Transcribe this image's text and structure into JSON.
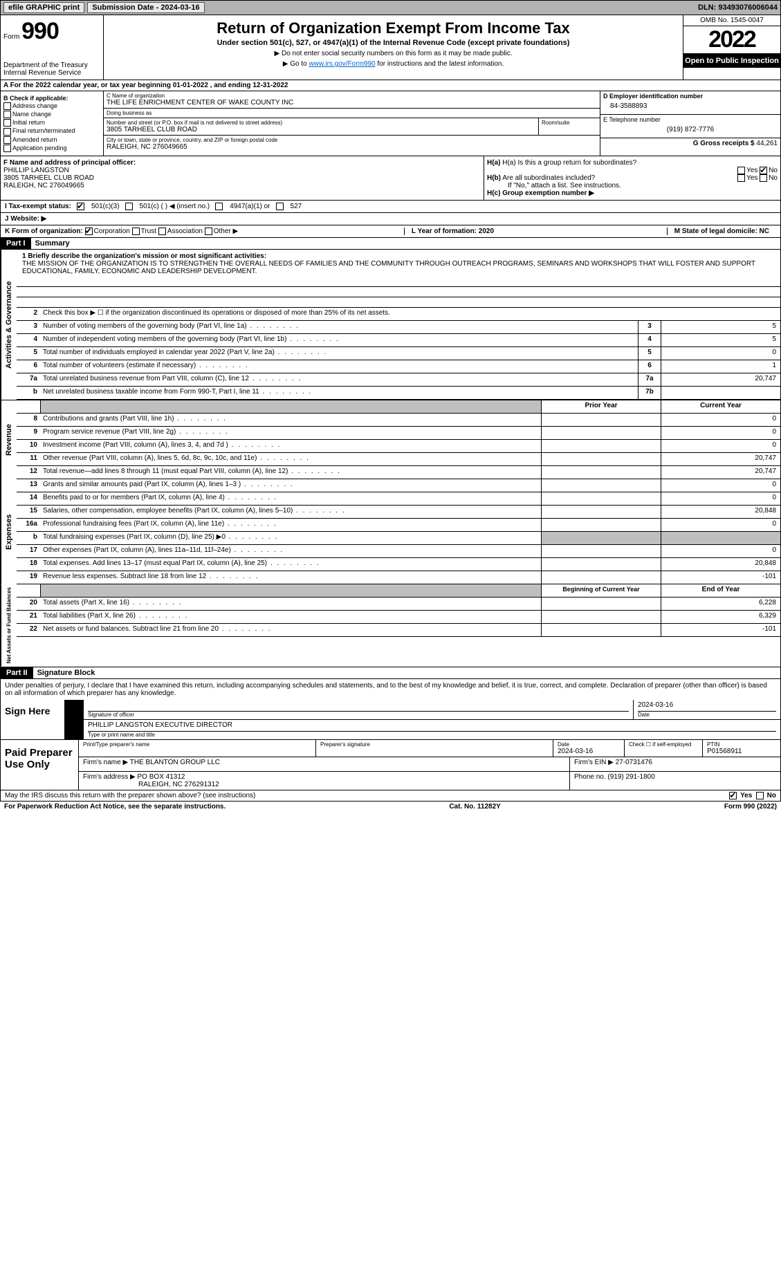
{
  "topbar": {
    "efile_label": "efile GRAPHIC print",
    "submission_label": "Submission Date - 2024-03-16",
    "dln_label": "DLN: 93493076006044"
  },
  "header": {
    "form_label": "Form",
    "form_number": "990",
    "dept": "Department of the Treasury",
    "irs": "Internal Revenue Service",
    "title": "Return of Organization Exempt From Income Tax",
    "subtitle": "Under section 501(c), 527, or 4947(a)(1) of the Internal Revenue Code (except private foundations)",
    "note1": "▶ Do not enter social security numbers on this form as it may be made public.",
    "note2_pre": "▶ Go to ",
    "note2_link": "www.irs.gov/Form990",
    "note2_post": " for instructions and the latest information.",
    "omb": "OMB No. 1545-0047",
    "year": "2022",
    "inspect": "Open to Public Inspection"
  },
  "row_a": "A For the 2022 calendar year, or tax year beginning 01-01-2022    , and ending 12-31-2022",
  "col_b": {
    "heading": "B Check if applicable:",
    "items": [
      "Address change",
      "Name change",
      "Initial return",
      "Final return/terminated",
      "Amended return",
      "Application pending"
    ]
  },
  "col_c": {
    "name_label": "C Name of organization",
    "name": "THE LIFE ENRICHMENT CENTER OF WAKE COUNTY INC",
    "dba_label": "Doing business as",
    "dba": "",
    "street_label": "Number and street (or P.O. box if mail is not delivered to street address)",
    "room_label": "Room/suite",
    "street": "3805 TARHEEL CLUB ROAD",
    "city_label": "City or town, state or province, country, and ZIP or foreign postal code",
    "city": "RALEIGH, NC  276049665"
  },
  "col_de": {
    "d_label": "D Employer identification number",
    "d_val": "84-3588893",
    "e_label": "E Telephone number",
    "e_val": "(919) 872-7776",
    "g_label": "G Gross receipts $",
    "g_val": "44,261"
  },
  "block_fh": {
    "f_label": "F Name and address of principal officer:",
    "f_name": "PHILLIP LANGSTON",
    "f_street": "3805 TARHEEL CLUB ROAD",
    "f_city": "RALEIGH, NC  276049665",
    "ha_label": "H(a) Is this a group return for subordinates?",
    "ha_yes": "Yes",
    "ha_no": "No",
    "hb_label": "H(b) Are all subordinates included?",
    "hb_yes": "Yes",
    "hb_no": "No",
    "hb_note": "If \"No,\" attach a list. See instructions.",
    "hc_label": "H(c) Group exemption number ▶"
  },
  "row_i": {
    "label": "I Tax-exempt status:",
    "o1": "501(c)(3)",
    "o2": "501(c) (   ) ◀ (insert no.)",
    "o3": "4947(a)(1) or",
    "o4": "527"
  },
  "row_j": {
    "label": "J Website: ▶"
  },
  "row_k": {
    "label": "K Form of organization:",
    "o1": "Corporation",
    "o2": "Trust",
    "o3": "Association",
    "o4": "Other ▶",
    "l_label": "L Year of formation: 2020",
    "m_label": "M State of legal domicile: NC"
  },
  "part1": {
    "num": "Part I",
    "title": "Summary"
  },
  "mission": {
    "label": "1 Briefly describe the organization's mission or most significant activities:",
    "text": "THE MISSION OF THE ORGANIZATION IS TO STRENGTHEN THE OVERALL NEEDS OF FAMILIES AND THE COMMUNITY THROUGH OUTREACH PROGRAMS, SEMINARS AND WORKSHOPS THAT WILL FOSTER AND SUPPORT EDUCATIONAL, FAMILY, ECONOMIC AND LEADERSHIP DEVELOPMENT."
  },
  "vtabs": {
    "gov": "Activities & Governance",
    "rev": "Revenue",
    "exp": "Expenses",
    "net": "Net Assets or Fund Balances"
  },
  "lines_gov": [
    {
      "n": "2",
      "t": "Check this box ▶ ☐ if the organization discontinued its operations or disposed of more than 25% of its net assets.",
      "box": "",
      "v": ""
    },
    {
      "n": "3",
      "t": "Number of voting members of the governing body (Part VI, line 1a)",
      "box": "3",
      "v": "5"
    },
    {
      "n": "4",
      "t": "Number of independent voting members of the governing body (Part VI, line 1b)",
      "box": "4",
      "v": "5"
    },
    {
      "n": "5",
      "t": "Total number of individuals employed in calendar year 2022 (Part V, line 2a)",
      "box": "5",
      "v": "0"
    },
    {
      "n": "6",
      "t": "Total number of volunteers (estimate if necessary)",
      "box": "6",
      "v": "1"
    },
    {
      "n": "7a",
      "t": "Total unrelated business revenue from Part VIII, column (C), line 12",
      "box": "7a",
      "v": "20,747"
    },
    {
      "n": "b",
      "t": "Net unrelated business taxable income from Form 990-T, Part I, line 11",
      "box": "7b",
      "v": ""
    }
  ],
  "colhdr": {
    "prior": "Prior Year",
    "current": "Current Year"
  },
  "lines_rev": [
    {
      "n": "8",
      "t": "Contributions and grants (Part VIII, line 1h)",
      "p": "",
      "c": "0"
    },
    {
      "n": "9",
      "t": "Program service revenue (Part VIII, line 2g)",
      "p": "",
      "c": "0"
    },
    {
      "n": "10",
      "t": "Investment income (Part VIII, column (A), lines 3, 4, and 7d )",
      "p": "",
      "c": "0"
    },
    {
      "n": "11",
      "t": "Other revenue (Part VIII, column (A), lines 5, 6d, 8c, 9c, 10c, and 11e)",
      "p": "",
      "c": "20,747"
    },
    {
      "n": "12",
      "t": "Total revenue—add lines 8 through 11 (must equal Part VIII, column (A), line 12)",
      "p": "",
      "c": "20,747"
    }
  ],
  "lines_exp": [
    {
      "n": "13",
      "t": "Grants and similar amounts paid (Part IX, column (A), lines 1–3 )",
      "p": "",
      "c": "0"
    },
    {
      "n": "14",
      "t": "Benefits paid to or for members (Part IX, column (A), line 4)",
      "p": "",
      "c": "0"
    },
    {
      "n": "15",
      "t": "Salaries, other compensation, employee benefits (Part IX, column (A), lines 5–10)",
      "p": "",
      "c": "20,848"
    },
    {
      "n": "16a",
      "t": "Professional fundraising fees (Part IX, column (A), line 11e)",
      "p": "",
      "c": "0"
    },
    {
      "n": "b",
      "t": "Total fundraising expenses (Part IX, column (D), line 25) ▶0",
      "p": "grey",
      "c": "grey"
    },
    {
      "n": "17",
      "t": "Other expenses (Part IX, column (A), lines 11a–11d, 11f–24e)",
      "p": "",
      "c": "0"
    },
    {
      "n": "18",
      "t": "Total expenses. Add lines 13–17 (must equal Part IX, column (A), line 25)",
      "p": "",
      "c": "20,848"
    },
    {
      "n": "19",
      "t": "Revenue less expenses. Subtract line 18 from line 12",
      "p": "",
      "c": "-101"
    }
  ],
  "colhdr2": {
    "prior": "Beginning of Current Year",
    "current": "End of Year"
  },
  "lines_net": [
    {
      "n": "20",
      "t": "Total assets (Part X, line 16)",
      "p": "",
      "c": "6,228"
    },
    {
      "n": "21",
      "t": "Total liabilities (Part X, line 26)",
      "p": "",
      "c": "6,329"
    },
    {
      "n": "22",
      "t": "Net assets or fund balances. Subtract line 21 from line 20",
      "p": "",
      "c": "-101"
    }
  ],
  "part2": {
    "num": "Part II",
    "title": "Signature Block"
  },
  "sig_text": "Under penalties of perjury, I declare that I have examined this return, including accompanying schedules and statements, and to the best of my knowledge and belief, it is true, correct, and complete. Declaration of preparer (other than officer) is based on all information of which preparer has any knowledge.",
  "sign": {
    "left": "Sign Here",
    "sig_label": "Signature of officer",
    "date_label": "Date",
    "date_val": "2024-03-16",
    "name": "PHILLIP LANGSTON  EXECUTIVE DIRECTOR",
    "name_label": "Type or print name and title"
  },
  "paid": {
    "left": "Paid Preparer Use Only",
    "h1": "Print/Type preparer's name",
    "h2": "Preparer's signature",
    "h3": "Date",
    "h3v": "2024-03-16",
    "h4": "Check ☐ if self-employed",
    "h5": "PTIN",
    "h5v": "P01568911",
    "firm_name_label": "Firm's name    ▶",
    "firm_name": "THE BLANTON GROUP LLC",
    "firm_ein_label": "Firm's EIN ▶",
    "firm_ein": "27-0731476",
    "firm_addr_label": "Firm's address ▶",
    "firm_addr1": "PO BOX 41312",
    "firm_addr2": "RALEIGH, NC  276291312",
    "phone_label": "Phone no.",
    "phone": "(919) 291-1800"
  },
  "footer": {
    "q": "May the IRS discuss this return with the preparer shown above? (see instructions)",
    "yes": "Yes",
    "no": "No",
    "pra": "For Paperwork Reduction Act Notice, see the separate instructions.",
    "cat": "Cat. No. 11282Y",
    "form": "Form 990 (2022)"
  }
}
